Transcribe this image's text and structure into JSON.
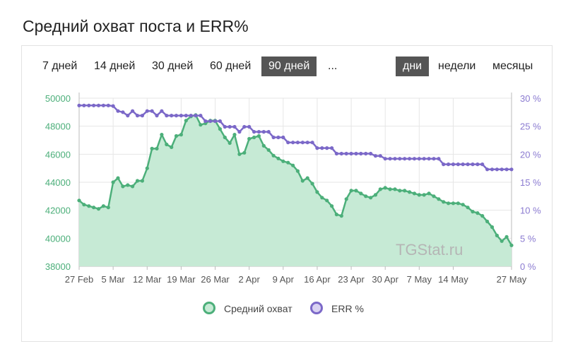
{
  "title": "Средний охват поста и ERR%",
  "periods": [
    "7 дней",
    "14 дней",
    "30 дней",
    "60 дней",
    "90 дней",
    "..."
  ],
  "active_period": "90 дней",
  "units": [
    "дни",
    "недели",
    "месяцы"
  ],
  "active_unit": "дни",
  "watermark": "TGStat.ru",
  "legend": [
    {
      "label": "Средний охват",
      "color": "#4caf7a"
    },
    {
      "label": "ERR %",
      "color": "#7b68c8"
    }
  ],
  "colors": {
    "reach": "#4caf7a",
    "reach_fill": "#c6ead5",
    "err": "#7b68c8",
    "grid": "#e6e6e6"
  },
  "chart_data": {
    "type": "line",
    "x_tick_labels": [
      "27 Feb",
      "5 Mar",
      "12 Mar",
      "19 Mar",
      "26 Mar",
      "2 Apr",
      "9 Apr",
      "16 Apr",
      "23 Apr",
      "30 Apr",
      "7 May",
      "14 May",
      "27 May"
    ],
    "x_tick_days": [
      0,
      7,
      14,
      21,
      28,
      35,
      42,
      49,
      56,
      63,
      70,
      77,
      89
    ],
    "x_range_days": [
      0,
      89
    ],
    "y_left": {
      "min": 38000,
      "max": 50000,
      "ticks": [
        38000,
        40000,
        42000,
        44000,
        46000,
        48000,
        50000
      ]
    },
    "y_right": {
      "min": 0,
      "max": 30,
      "ticks": [
        "0 %",
        "5 %",
        "10 %",
        "15 %",
        "20 %",
        "25 %",
        "30 %"
      ]
    },
    "series": [
      {
        "name": "Средний охват",
        "axis": "left",
        "style": "area",
        "points": [
          [
            0,
            42700
          ],
          [
            1,
            42400
          ],
          [
            2,
            42300
          ],
          [
            3,
            42200
          ],
          [
            4,
            42100
          ],
          [
            5,
            42300
          ],
          [
            6,
            42200
          ],
          [
            7,
            44000
          ],
          [
            8,
            44300
          ],
          [
            9,
            43700
          ],
          [
            10,
            43800
          ],
          [
            11,
            43700
          ],
          [
            12,
            44100
          ],
          [
            13,
            44100
          ],
          [
            14,
            45000
          ],
          [
            15,
            46400
          ],
          [
            16,
            46400
          ],
          [
            17,
            47400
          ],
          [
            18,
            46700
          ],
          [
            19,
            46500
          ],
          [
            20,
            47300
          ],
          [
            21,
            47400
          ],
          [
            22,
            48400
          ],
          [
            23,
            48700
          ],
          [
            24,
            48800
          ],
          [
            25,
            48100
          ],
          [
            26,
            48200
          ],
          [
            27,
            48400
          ],
          [
            28,
            48400
          ],
          [
            29,
            47800
          ],
          [
            30,
            47200
          ],
          [
            31,
            46800
          ],
          [
            32,
            47400
          ],
          [
            33,
            46000
          ],
          [
            34,
            46100
          ],
          [
            35,
            47100
          ],
          [
            36,
            47200
          ],
          [
            37,
            47300
          ],
          [
            38,
            46600
          ],
          [
            39,
            46300
          ],
          [
            40,
            45900
          ],
          [
            41,
            45700
          ],
          [
            42,
            45500
          ],
          [
            43,
            45400
          ],
          [
            44,
            45200
          ],
          [
            45,
            44800
          ],
          [
            46,
            44100
          ],
          [
            47,
            44300
          ],
          [
            48,
            43900
          ],
          [
            49,
            43300
          ],
          [
            50,
            42900
          ],
          [
            51,
            42700
          ],
          [
            52,
            42300
          ],
          [
            53,
            41700
          ],
          [
            54,
            41600
          ],
          [
            55,
            42800
          ],
          [
            56,
            43400
          ],
          [
            57,
            43400
          ],
          [
            58,
            43200
          ],
          [
            59,
            43000
          ],
          [
            60,
            42900
          ],
          [
            61,
            43100
          ],
          [
            62,
            43500
          ],
          [
            63,
            43600
          ],
          [
            64,
            43500
          ],
          [
            65,
            43500
          ],
          [
            66,
            43400
          ],
          [
            67,
            43400
          ],
          [
            68,
            43300
          ],
          [
            69,
            43200
          ],
          [
            70,
            43100
          ],
          [
            71,
            43100
          ],
          [
            72,
            43200
          ],
          [
            73,
            43000
          ],
          [
            74,
            42800
          ],
          [
            75,
            42600
          ],
          [
            76,
            42500
          ],
          [
            77,
            42500
          ],
          [
            78,
            42500
          ],
          [
            79,
            42400
          ],
          [
            80,
            42200
          ],
          [
            81,
            41900
          ],
          [
            82,
            41800
          ],
          [
            83,
            41600
          ],
          [
            84,
            41200
          ],
          [
            85,
            40800
          ],
          [
            86,
            40200
          ],
          [
            87,
            39800
          ],
          [
            88,
            40100
          ],
          [
            89,
            39500
          ]
        ]
      },
      {
        "name": "ERR %",
        "axis": "right",
        "style": "line",
        "points": [
          [
            0,
            28.7
          ],
          [
            1,
            28.7
          ],
          [
            2,
            28.7
          ],
          [
            3,
            28.7
          ],
          [
            4,
            28.7
          ],
          [
            5,
            28.7
          ],
          [
            6,
            28.7
          ],
          [
            7,
            28.6
          ],
          [
            8,
            27.7
          ],
          [
            9,
            27.5
          ],
          [
            10,
            26.9
          ],
          [
            11,
            27.7
          ],
          [
            12,
            26.9
          ],
          [
            13,
            26.9
          ],
          [
            14,
            27.7
          ],
          [
            15,
            27.7
          ],
          [
            16,
            26.9
          ],
          [
            17,
            27.7
          ],
          [
            18,
            26.9
          ],
          [
            19,
            26.9
          ],
          [
            20,
            26.9
          ],
          [
            21,
            26.9
          ],
          [
            22,
            26.9
          ],
          [
            23,
            26.9
          ],
          [
            24,
            26.9
          ],
          [
            25,
            26.9
          ],
          [
            26,
            25.9
          ],
          [
            27,
            25.9
          ],
          [
            28,
            25.9
          ],
          [
            29,
            25.9
          ],
          [
            30,
            24.9
          ],
          [
            31,
            24.9
          ],
          [
            32,
            24.9
          ],
          [
            33,
            24.0
          ],
          [
            34,
            24.9
          ],
          [
            35,
            24.9
          ],
          [
            36,
            24.0
          ],
          [
            37,
            24.0
          ],
          [
            38,
            24.0
          ],
          [
            39,
            24.0
          ],
          [
            40,
            23.0
          ],
          [
            41,
            23.0
          ],
          [
            42,
            23.0
          ],
          [
            43,
            22.1
          ],
          [
            44,
            22.1
          ],
          [
            45,
            22.1
          ],
          [
            46,
            22.1
          ],
          [
            47,
            22.1
          ],
          [
            48,
            22.1
          ],
          [
            49,
            21.1
          ],
          [
            50,
            21.1
          ],
          [
            51,
            21.1
          ],
          [
            52,
            21.1
          ],
          [
            53,
            20.1
          ],
          [
            54,
            20.1
          ],
          [
            55,
            20.1
          ],
          [
            56,
            20.1
          ],
          [
            57,
            20.1
          ],
          [
            58,
            20.1
          ],
          [
            59,
            20.1
          ],
          [
            60,
            20.1
          ],
          [
            61,
            19.7
          ],
          [
            62,
            19.7
          ],
          [
            63,
            19.2
          ],
          [
            64,
            19.2
          ],
          [
            65,
            19.2
          ],
          [
            66,
            19.2
          ],
          [
            67,
            19.2
          ],
          [
            68,
            19.2
          ],
          [
            69,
            19.2
          ],
          [
            70,
            19.2
          ],
          [
            71,
            19.2
          ],
          [
            72,
            19.2
          ],
          [
            73,
            19.2
          ],
          [
            74,
            19.2
          ],
          [
            75,
            18.2
          ],
          [
            76,
            18.2
          ],
          [
            77,
            18.2
          ],
          [
            78,
            18.2
          ],
          [
            79,
            18.2
          ],
          [
            80,
            18.2
          ],
          [
            81,
            18.2
          ],
          [
            82,
            18.2
          ],
          [
            83,
            18.2
          ],
          [
            84,
            17.3
          ],
          [
            85,
            17.3
          ],
          [
            86,
            17.3
          ],
          [
            87,
            17.3
          ],
          [
            88,
            17.3
          ],
          [
            89,
            17.3
          ]
        ]
      }
    ]
  }
}
